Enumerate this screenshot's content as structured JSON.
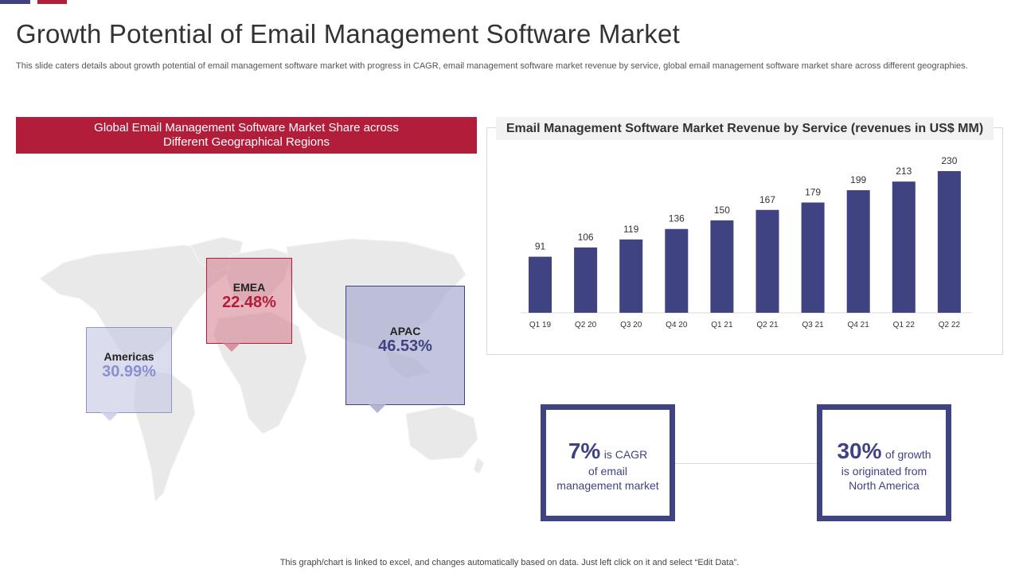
{
  "colors": {
    "accent_red": "#b21e3a",
    "accent_blue": "#404382",
    "map_gray": "#e9e9e9"
  },
  "header": {
    "title": "Growth Potential of Email Management Software Market",
    "subtitle": "This slide caters details about growth potential of email management software market with progress in CAGR, email management software market revenue by service, global email management software market share across different geographies."
  },
  "map_section": {
    "title": "Global Email Management  Software Market Share across Different Geographical Regions",
    "regions": [
      {
        "name": "EMEA",
        "share": "22.48%"
      },
      {
        "name": "Americas",
        "share": "30.99%"
      },
      {
        "name": "APAC",
        "share": "46.53%"
      }
    ]
  },
  "chart_data": {
    "type": "bar",
    "title": "Email Management Software Market Revenue by Service (revenues in US$ MM)",
    "categories": [
      "Q1 19",
      "Q2 20",
      "Q3 20",
      "Q4 20",
      "Q1 21",
      "Q2 21",
      "Q3 21",
      "Q4 21",
      "Q1 22",
      "Q2 22"
    ],
    "values": [
      91,
      106,
      119,
      136,
      150,
      167,
      179,
      199,
      213,
      230
    ],
    "xlabel": "",
    "ylabel": "",
    "ylim": [
      0,
      230
    ],
    "grid": false,
    "bar_color": "#404382"
  },
  "stats": {
    "cagr": {
      "value": "7%",
      "line1": "is CAGR",
      "line2": "of email",
      "line3": "management market"
    },
    "growth": {
      "value": "30%",
      "line1": "of growth",
      "line2": "is originated from",
      "line3": "North America"
    }
  },
  "footer": {
    "note": "This graph/chart is linked to excel,  and changes automatically based on data. Just left click on it and select “Edit Data”."
  }
}
